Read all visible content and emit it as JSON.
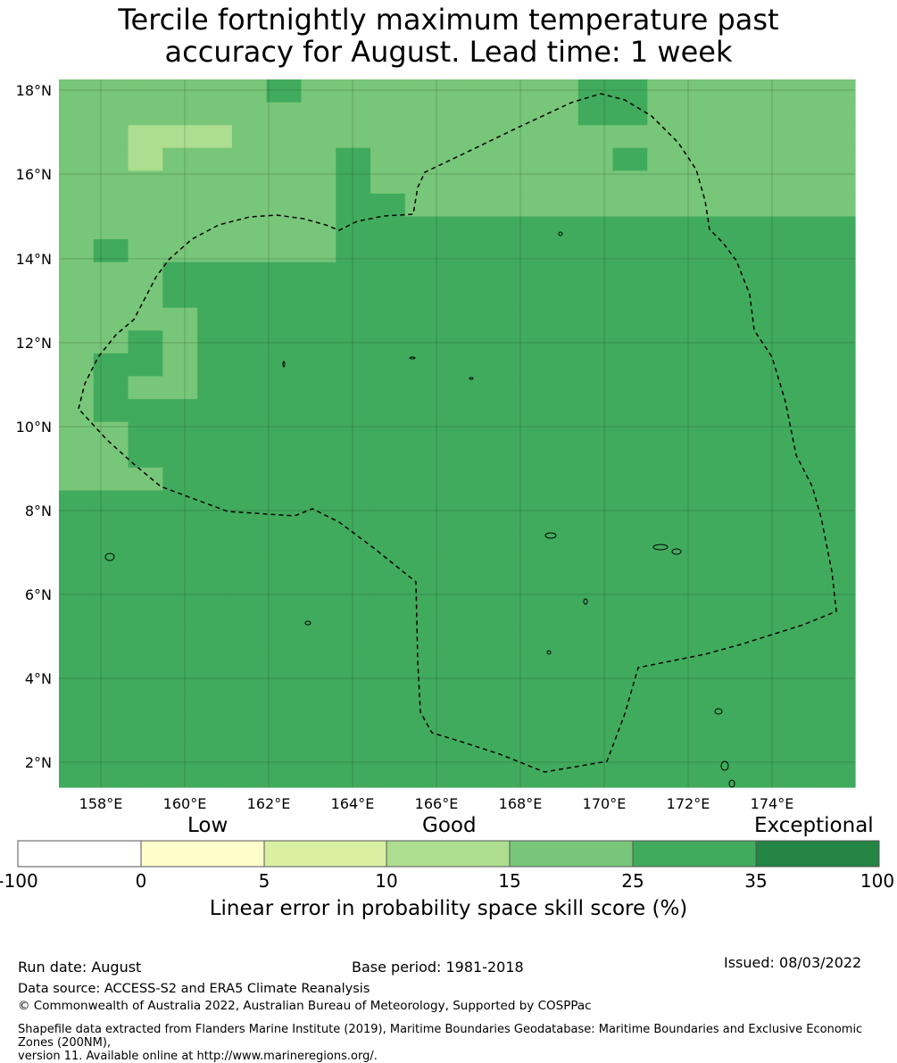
{
  "title_line1": "Tercile fortnightly maximum temperature past",
  "title_line2": "accuracy for August. Lead time: 1 week",
  "map": {
    "lat_labels": [
      "18°N",
      "16°N",
      "14°N",
      "12°N",
      "10°N",
      "8°N",
      "6°N",
      "4°N",
      "2°N"
    ],
    "lon_labels": [
      "158°E",
      "160°E",
      "162°E",
      "164°E",
      "166°E",
      "168°E",
      "170°E",
      "172°E",
      "174°E"
    ],
    "grid_cols": 23,
    "grid_rows": 31,
    "cells": [
      "44444454444444455444444",
      "44444444444444455444444",
      "44333444444444444444444",
      "44344444544444445444444",
      "44444444544444444444444",
      "44444444554444444444444",
      "44444444555555555555555",
      "45444444555555555555555",
      "44455555555555555555555",
      "44455555555555555555555",
      "44445555555555555555555",
      "44545555555555555555555",
      "45545555555555555555555",
      "45445555555555555555555",
      "45555555555555555555555",
      "44555555555555555555555",
      "44555555555555555555555",
      "44455555555555555555555",
      "55555555555555555555555",
      "55555555555555555555555",
      "55555555555555555555555",
      "55555555555555555555555",
      "55555555555555555555555",
      "55555555555555555555555",
      "55555555555555555555555",
      "55555555555555555555555",
      "55555555555555555555555",
      "55555555555555555555555",
      "55555555555555555555555",
      "55555555555555555555555",
      "55555555555555555555555"
    ]
  },
  "colorbar": {
    "categories": [
      "Low",
      "Good",
      "Exceptional"
    ],
    "ticks": [
      "-100",
      "0",
      "5",
      "10",
      "15",
      "25",
      "35",
      "100"
    ],
    "colors": [
      "#ffffff",
      "#ffffcc",
      "#d9f0a3",
      "#addd8e",
      "#78c679",
      "#41ab5d",
      "#238443"
    ],
    "label": "Linear error in probability space skill score (%)"
  },
  "footer": {
    "run_date": "Run date: August",
    "base_period": "Base period: 1981-2018",
    "issued": "Issued: 08/03/2022",
    "data_source": "Data source: ACCESS-S2 and ERA5 Climate Reanalysis",
    "copyright": "© Commonwealth of Australia 2022, Australian Bureau of Meteorology, Supported by COSPPac",
    "shapefile_line1": "Shapefile data extracted from Flanders Marine Institute (2019), Maritime Boundaries Geodatabase: Maritime Boundaries and Exclusive Economic Zones (200NM),",
    "shapefile_line2": "version 11. Available online at http://www.marineregions.org/."
  }
}
